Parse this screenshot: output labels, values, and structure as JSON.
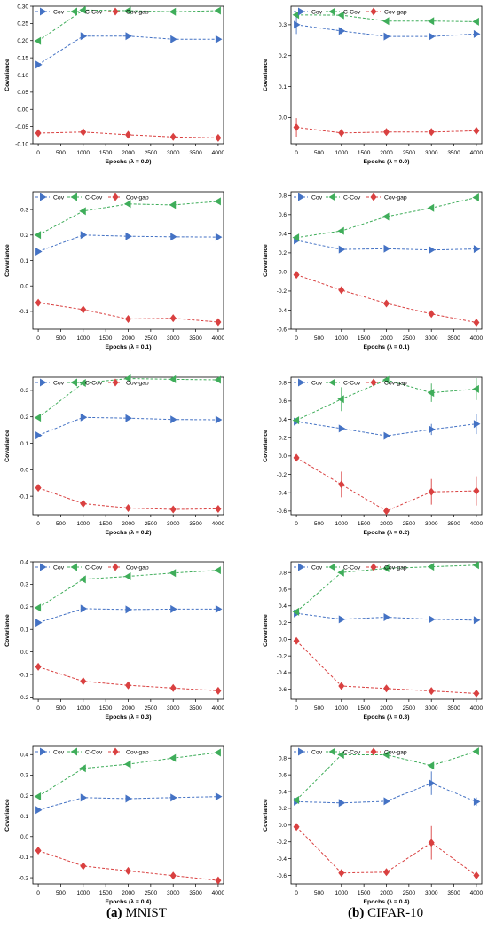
{
  "colors": {
    "Cov": "#4472c4",
    "C-Cov": "#3fad5a",
    "Cov-gap": "#d94040"
  },
  "captions": [
    {
      "letter": "(a)",
      "text": "MNIST"
    },
    {
      "letter": "(b)",
      "text": "CIFAR-10"
    }
  ],
  "chart_data": [
    {
      "type": "line",
      "column": "MNIST",
      "xlabel": "Epochs (λ = 0.0)",
      "ylabel": "Covariance",
      "x": [
        0,
        1000,
        2000,
        3000,
        4000
      ],
      "xticks": [
        0,
        500,
        1000,
        1500,
        2000,
        2500,
        3000,
        3500,
        4000
      ],
      "ylim": [
        -0.1,
        0.3
      ],
      "yticks": [
        "-0.10",
        "-0.05",
        "0.00",
        "0.05",
        "0.10",
        "0.15",
        "0.20",
        "0.25",
        "0.30"
      ],
      "ytickvals": [
        -0.1,
        -0.05,
        0,
        0.05,
        0.1,
        0.15,
        0.2,
        0.25,
        0.3
      ],
      "series": [
        {
          "name": "Cov",
          "marker": "right",
          "values": [
            0.13,
            0.213,
            0.213,
            0.204,
            0.204
          ],
          "err": [
            0,
            0,
            0,
            0,
            0
          ]
        },
        {
          "name": "C-Cov",
          "marker": "left",
          "values": [
            0.199,
            0.289,
            0.287,
            0.284,
            0.287
          ],
          "err": [
            0,
            0,
            0,
            0,
            0
          ]
        },
        {
          "name": "Cov-gap",
          "marker": "diamond",
          "values": [
            -0.069,
            -0.066,
            -0.074,
            -0.08,
            -0.083
          ],
          "err": [
            0,
            0,
            0,
            0,
            0
          ]
        }
      ]
    },
    {
      "type": "line",
      "column": "CIFAR-10",
      "xlabel": "Epochs (λ = 0.0)",
      "ylabel": "Covariance",
      "x": [
        0,
        1000,
        2000,
        3000,
        4000
      ],
      "xticks": [
        0,
        500,
        1000,
        1500,
        2000,
        2500,
        3000,
        3500,
        4000
      ],
      "ylim": [
        -0.085,
        0.36
      ],
      "yticks": [
        "0.0",
        "0.1",
        "0.2",
        "0.3"
      ],
      "ytickvals": [
        0,
        0.1,
        0.2,
        0.3
      ],
      "series": [
        {
          "name": "Cov",
          "marker": "right",
          "values": [
            0.3,
            0.28,
            0.262,
            0.262,
            0.27
          ],
          "err": [
            0.03,
            0.01,
            0,
            0,
            0
          ]
        },
        {
          "name": "C-Cov",
          "marker": "left",
          "values": [
            0.332,
            0.331,
            0.312,
            0.312,
            0.31
          ],
          "err": [
            0,
            0,
            0,
            0,
            0
          ]
        },
        {
          "name": "Cov-gap",
          "marker": "diamond",
          "values": [
            -0.032,
            -0.05,
            -0.047,
            -0.047,
            -0.043
          ],
          "err": [
            0.03,
            0,
            0,
            0,
            0
          ]
        }
      ]
    },
    {
      "type": "line",
      "column": "MNIST",
      "xlabel": "Epochs (λ = 0.1)",
      "ylabel": "Covariance",
      "x": [
        0,
        1000,
        2000,
        3000,
        4000
      ],
      "xticks": [
        0,
        500,
        1000,
        1500,
        2000,
        2500,
        3000,
        3500,
        4000
      ],
      "ylim": [
        -0.17,
        0.37
      ],
      "yticks": [
        "-0.1",
        "0.0",
        "0.1",
        "0.2",
        "0.3"
      ],
      "ytickvals": [
        -0.1,
        0,
        0.1,
        0.2,
        0.3
      ],
      "series": [
        {
          "name": "Cov",
          "marker": "right",
          "values": [
            0.135,
            0.2,
            0.195,
            0.193,
            0.192
          ],
          "err": [
            0,
            0,
            0,
            0,
            0
          ]
        },
        {
          "name": "C-Cov",
          "marker": "left",
          "values": [
            0.2,
            0.294,
            0.322,
            0.318,
            0.332
          ],
          "err": [
            0,
            0,
            0,
            0,
            0
          ]
        },
        {
          "name": "Cov-gap",
          "marker": "diamond",
          "values": [
            -0.066,
            -0.093,
            -0.13,
            -0.127,
            -0.142
          ],
          "err": [
            0,
            0,
            0,
            0,
            0
          ]
        }
      ]
    },
    {
      "type": "line",
      "column": "CIFAR-10",
      "xlabel": "Epochs (λ = 0.1)",
      "ylabel": "Covariance",
      "x": [
        0,
        1000,
        2000,
        3000,
        4000
      ],
      "xticks": [
        0,
        500,
        1000,
        1500,
        2000,
        2500,
        3000,
        3500,
        4000
      ],
      "ylim": [
        -0.6,
        0.84
      ],
      "yticks": [
        "-0.6",
        "-0.4",
        "-0.2",
        "0.0",
        "0.2",
        "0.4",
        "0.6",
        "0.8"
      ],
      "ytickvals": [
        -0.6,
        -0.4,
        -0.2,
        0,
        0.2,
        0.4,
        0.6,
        0.8
      ],
      "series": [
        {
          "name": "Cov",
          "marker": "right",
          "values": [
            0.33,
            0.235,
            0.243,
            0.23,
            0.24
          ],
          "err": [
            0,
            0,
            0,
            0,
            0
          ]
        },
        {
          "name": "C-Cov",
          "marker": "left",
          "values": [
            0.36,
            0.43,
            0.58,
            0.67,
            0.78
          ],
          "err": [
            0,
            0,
            0,
            0,
            0
          ]
        },
        {
          "name": "Cov-gap",
          "marker": "diamond",
          "values": [
            -0.03,
            -0.19,
            -0.33,
            -0.44,
            -0.53
          ],
          "err": [
            0,
            0,
            0,
            0,
            0
          ]
        }
      ]
    },
    {
      "type": "line",
      "column": "MNIST",
      "xlabel": "Epochs (λ = 0.2)",
      "ylabel": "Covariance",
      "x": [
        0,
        1000,
        2000,
        3000,
        4000
      ],
      "xticks": [
        0,
        500,
        1000,
        1500,
        2000,
        2500,
        3000,
        3500,
        4000
      ],
      "ylim": [
        -0.17,
        0.35
      ],
      "yticks": [
        "-0.1",
        "0.0",
        "0.1",
        "0.2",
        "0.3"
      ],
      "ytickvals": [
        -0.1,
        0,
        0.1,
        0.2,
        0.3
      ],
      "series": [
        {
          "name": "Cov",
          "marker": "right",
          "values": [
            0.13,
            0.198,
            0.195,
            0.19,
            0.189
          ],
          "err": [
            0,
            0,
            0,
            0,
            0
          ]
        },
        {
          "name": "C-Cov",
          "marker": "left",
          "values": [
            0.197,
            0.328,
            0.345,
            0.342,
            0.34
          ],
          "err": [
            0,
            0,
            0,
            0,
            0
          ]
        },
        {
          "name": "Cov-gap",
          "marker": "diamond",
          "values": [
            -0.068,
            -0.128,
            -0.145,
            -0.15,
            -0.148
          ],
          "err": [
            0,
            0,
            0,
            0,
            0
          ]
        }
      ]
    },
    {
      "type": "line",
      "column": "CIFAR-10",
      "xlabel": "Epochs (λ = 0.2)",
      "ylabel": "Covariance",
      "x": [
        0,
        1000,
        2000,
        3000,
        4000
      ],
      "xticks": [
        0,
        500,
        1000,
        1500,
        2000,
        2500,
        3000,
        3500,
        4000
      ],
      "ylim": [
        -0.64,
        0.86
      ],
      "yticks": [
        "-0.6",
        "-0.4",
        "-0.2",
        "0.0",
        "0.2",
        "0.4",
        "0.6",
        "0.8"
      ],
      "ytickvals": [
        -0.6,
        -0.4,
        -0.2,
        0,
        0.2,
        0.4,
        0.6,
        0.8
      ],
      "series": [
        {
          "name": "Cov",
          "marker": "right",
          "values": [
            0.375,
            0.3,
            0.22,
            0.29,
            0.35
          ],
          "err": [
            0,
            0,
            0,
            0.06,
            0.11
          ]
        },
        {
          "name": "C-Cov",
          "marker": "left",
          "values": [
            0.39,
            0.62,
            0.83,
            0.69,
            0.73
          ],
          "err": [
            0,
            0.13,
            0,
            0.1,
            0.12
          ]
        },
        {
          "name": "Cov-gap",
          "marker": "diamond",
          "values": [
            -0.02,
            -0.31,
            -0.6,
            -0.39,
            -0.38
          ],
          "err": [
            0,
            0.14,
            0,
            0.14,
            0.16
          ]
        }
      ]
    },
    {
      "type": "line",
      "column": "MNIST",
      "xlabel": "Epochs (λ = 0.3)",
      "ylabel": "Covariance",
      "x": [
        0,
        1000,
        2000,
        3000,
        4000
      ],
      "xticks": [
        0,
        500,
        1000,
        1500,
        2000,
        2500,
        3000,
        3500,
        4000
      ],
      "ylim": [
        -0.21,
        0.4
      ],
      "yticks": [
        "-0.2",
        "-0.1",
        "0.0",
        "0.1",
        "0.2",
        "0.3",
        "0.4"
      ],
      "ytickvals": [
        -0.2,
        -0.1,
        0,
        0.1,
        0.2,
        0.3,
        0.4
      ],
      "series": [
        {
          "name": "Cov",
          "marker": "right",
          "values": [
            0.13,
            0.192,
            0.188,
            0.19,
            0.19
          ],
          "err": [
            0,
            0,
            0,
            0,
            0
          ]
        },
        {
          "name": "C-Cov",
          "marker": "left",
          "values": [
            0.196,
            0.322,
            0.335,
            0.35,
            0.362
          ],
          "err": [
            0,
            0,
            0,
            0,
            0
          ]
        },
        {
          "name": "Cov-gap",
          "marker": "diamond",
          "values": [
            -0.066,
            -0.13,
            -0.148,
            -0.16,
            -0.172
          ],
          "err": [
            0,
            0,
            0,
            0,
            0
          ]
        }
      ]
    },
    {
      "type": "line",
      "column": "CIFAR-10",
      "xlabel": "Epochs (λ = 0.3)",
      "ylabel": "Covariance",
      "x": [
        0,
        1000,
        2000,
        3000,
        4000
      ],
      "xticks": [
        0,
        500,
        1000,
        1500,
        2000,
        2500,
        3000,
        3500,
        4000
      ],
      "ylim": [
        -0.72,
        0.93
      ],
      "yticks": [
        "-0.6",
        "-0.4",
        "-0.2",
        "0.0",
        "0.2",
        "0.4",
        "0.6",
        "0.8"
      ],
      "ytickvals": [
        -0.6,
        -0.4,
        -0.2,
        0,
        0.2,
        0.4,
        0.6,
        0.8
      ],
      "series": [
        {
          "name": "Cov",
          "marker": "right",
          "values": [
            0.31,
            0.24,
            0.265,
            0.24,
            0.23
          ],
          "err": [
            0,
            0,
            0,
            0,
            0
          ]
        },
        {
          "name": "C-Cov",
          "marker": "left",
          "values": [
            0.33,
            0.8,
            0.85,
            0.87,
            0.89
          ],
          "err": [
            0,
            0,
            0,
            0,
            0
          ]
        },
        {
          "name": "Cov-gap",
          "marker": "diamond",
          "values": [
            -0.02,
            -0.56,
            -0.59,
            -0.62,
            -0.65
          ],
          "err": [
            0,
            0,
            0,
            0,
            0
          ]
        }
      ]
    },
    {
      "type": "line",
      "column": "MNIST",
      "xlabel": "Epochs (λ = 0.4)",
      "ylabel": "Covariance",
      "x": [
        0,
        1000,
        2000,
        3000,
        4000
      ],
      "xticks": [
        0,
        500,
        1000,
        1500,
        2000,
        2500,
        3000,
        3500,
        4000
      ],
      "ylim": [
        -0.23,
        0.44
      ],
      "yticks": [
        "-0.2",
        "-0.1",
        "0.0",
        "0.1",
        "0.2",
        "0.3",
        "0.4"
      ],
      "ytickvals": [
        -0.2,
        -0.1,
        0,
        0.1,
        0.2,
        0.3,
        0.4
      ],
      "series": [
        {
          "name": "Cov",
          "marker": "right",
          "values": [
            0.13,
            0.19,
            0.185,
            0.19,
            0.195
          ],
          "err": [
            0,
            0,
            0,
            0,
            0
          ]
        },
        {
          "name": "C-Cov",
          "marker": "left",
          "values": [
            0.196,
            0.333,
            0.353,
            0.383,
            0.41
          ],
          "err": [
            0,
            0,
            0,
            0,
            0
          ]
        },
        {
          "name": "Cov-gap",
          "marker": "diamond",
          "values": [
            -0.068,
            -0.143,
            -0.167,
            -0.19,
            -0.213
          ],
          "err": [
            0,
            0,
            0,
            0,
            0
          ]
        }
      ]
    },
    {
      "type": "line",
      "column": "CIFAR-10",
      "xlabel": "Epochs (λ = 0.4)",
      "ylabel": "Covariance",
      "x": [
        0,
        1000,
        2000,
        3000,
        4000
      ],
      "xticks": [
        0,
        500,
        1000,
        1500,
        2000,
        2500,
        3000,
        3500,
        4000
      ],
      "ylim": [
        -0.7,
        0.94
      ],
      "yticks": [
        "-0.6",
        "-0.4",
        "-0.2",
        "0.0",
        "0.2",
        "0.4",
        "0.6",
        "0.8"
      ],
      "ytickvals": [
        -0.6,
        -0.4,
        -0.2,
        0,
        0.2,
        0.4,
        0.6,
        0.8
      ],
      "series": [
        {
          "name": "Cov",
          "marker": "right",
          "values": [
            0.28,
            0.265,
            0.285,
            0.5,
            0.28
          ],
          "err": [
            0,
            0,
            0,
            0.14,
            0.05
          ]
        },
        {
          "name": "C-Cov",
          "marker": "left",
          "values": [
            0.3,
            0.84,
            0.84,
            0.71,
            0.88
          ],
          "err": [
            0,
            0,
            0,
            0,
            0
          ]
        },
        {
          "name": "Cov-gap",
          "marker": "diamond",
          "values": [
            -0.02,
            -0.57,
            -0.56,
            -0.21,
            -0.6
          ],
          "err": [
            0,
            0,
            0,
            0.2,
            0
          ]
        }
      ]
    }
  ]
}
